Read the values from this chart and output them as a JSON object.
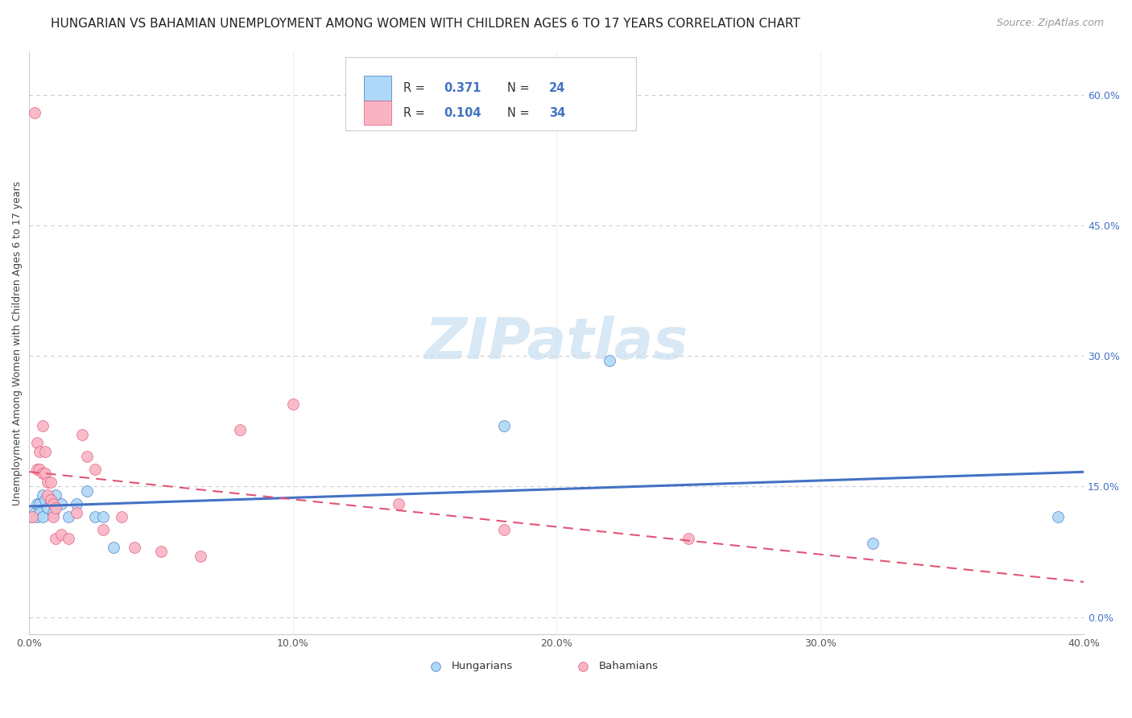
{
  "title": "HUNGARIAN VS BAHAMIAN UNEMPLOYMENT AMONG WOMEN WITH CHILDREN AGES 6 TO 17 YEARS CORRELATION CHART",
  "source": "Source: ZipAtlas.com",
  "ylabel": "Unemployment Among Women with Children Ages 6 to 17 years",
  "xlim": [
    0.0,
    0.4
  ],
  "ylim": [
    -0.02,
    0.65
  ],
  "hungarian_color": "#add8f7",
  "bahamian_color": "#f9b4c4",
  "hungarian_line_color": "#4472c4",
  "bahamian_line_color": "#e05575",
  "watermark_text": "ZIPatlas",
  "hungarian_x": [
    0.001,
    0.002,
    0.003,
    0.003,
    0.004,
    0.004,
    0.005,
    0.005,
    0.006,
    0.007,
    0.008,
    0.009,
    0.01,
    0.012,
    0.015,
    0.018,
    0.022,
    0.025,
    0.028,
    0.032,
    0.18,
    0.22,
    0.32,
    0.39
  ],
  "hungarian_y": [
    0.115,
    0.12,
    0.13,
    0.115,
    0.13,
    0.12,
    0.115,
    0.14,
    0.135,
    0.125,
    0.135,
    0.12,
    0.14,
    0.13,
    0.115,
    0.13,
    0.145,
    0.115,
    0.115,
    0.08,
    0.22,
    0.295,
    0.085,
    0.115
  ],
  "bahamian_x": [
    0.001,
    0.002,
    0.003,
    0.003,
    0.004,
    0.004,
    0.005,
    0.005,
    0.006,
    0.006,
    0.007,
    0.007,
    0.008,
    0.008,
    0.009,
    0.009,
    0.01,
    0.01,
    0.012,
    0.015,
    0.018,
    0.02,
    0.022,
    0.025,
    0.028,
    0.035,
    0.04,
    0.05,
    0.065,
    0.08,
    0.1,
    0.14,
    0.18,
    0.25
  ],
  "bahamian_y": [
    0.115,
    0.58,
    0.2,
    0.17,
    0.19,
    0.17,
    0.22,
    0.165,
    0.19,
    0.165,
    0.155,
    0.14,
    0.155,
    0.135,
    0.13,
    0.115,
    0.125,
    0.09,
    0.095,
    0.09,
    0.12,
    0.21,
    0.185,
    0.17,
    0.1,
    0.115,
    0.08,
    0.075,
    0.07,
    0.215,
    0.245,
    0.13,
    0.1,
    0.09
  ],
  "marker_size": 100,
  "background_color": "#ffffff",
  "grid_color": "#cccccc",
  "title_fontsize": 11,
  "source_fontsize": 9,
  "label_fontsize": 9,
  "tick_fontsize": 9,
  "watermark_fontsize": 52,
  "watermark_color": "#c8dff0",
  "x_tick_vals": [
    0.0,
    0.1,
    0.2,
    0.3,
    0.4
  ],
  "x_tick_labels": [
    "0.0%",
    "10.0%",
    "20.0%",
    "30.0%",
    "40.0%"
  ],
  "y_tick_vals": [
    0.0,
    0.15,
    0.3,
    0.45,
    0.6
  ],
  "y_tick_labels": [
    "0.0%",
    "15.0%",
    "30.0%",
    "45.0%",
    "60.0%"
  ]
}
